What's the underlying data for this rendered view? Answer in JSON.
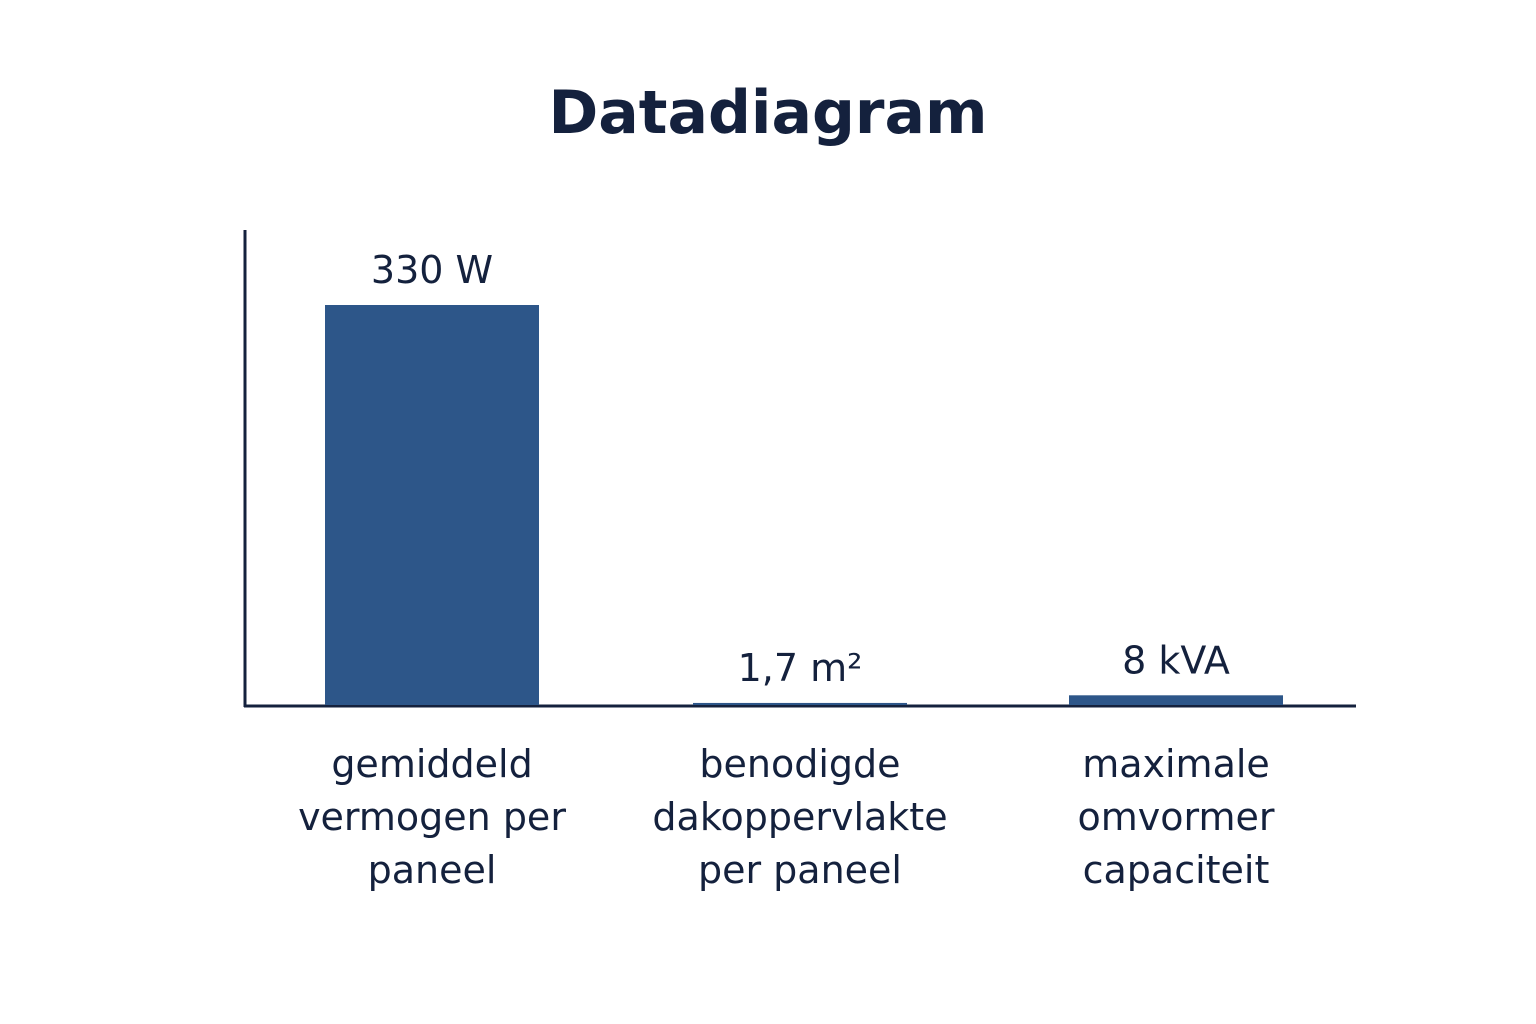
{
  "chart_data": {
    "type": "bar",
    "title": "Datadiagram",
    "categories": [
      "gemiddeld vermogen per paneel",
      "benodigde dakoppervlakte per paneel",
      "maximale omvormer capaciteit"
    ],
    "values": [
      330,
      1.7,
      8
    ],
    "value_labels": [
      "330 W",
      "1,7 m²",
      "8 kVA"
    ],
    "color": "#2d5689"
  }
}
